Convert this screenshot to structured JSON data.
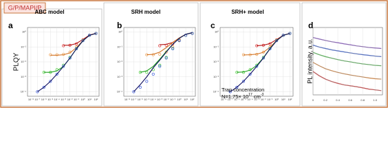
{
  "tag": "G/P/MAPI/P",
  "chart_data": [
    {
      "type": "scatter",
      "panel": "a",
      "title": "ABC model",
      "ylabel": "PLQY",
      "log_x": true,
      "log_y": true,
      "grid": true,
      "x": [
        1e-07,
        1e-06,
        1e-05,
        0.0001,
        0.001,
        0.01,
        0.1,
        1,
        10,
        100
      ],
      "xlim": [
        3e-09,
        300
      ],
      "ylim": [
        5e-05,
        2
      ],
      "xticks": [
        {
          "value": 1e-08,
          "label": "10⁻⁸"
        },
        {
          "value": 1e-07,
          "label": "10⁻⁷"
        },
        {
          "value": 1e-06,
          "label": "10⁻⁶"
        },
        {
          "value": 1e-05,
          "label": "10⁻⁵"
        },
        {
          "value": 0.0001,
          "label": "10⁻⁴"
        },
        {
          "value": 0.001,
          "label": "10⁻³"
        },
        {
          "value": 0.01,
          "label": "10⁻²"
        },
        {
          "value": 0.1,
          "label": "10⁻¹"
        },
        {
          "value": 1,
          "label": "10⁰"
        },
        {
          "value": 10,
          "label": "10¹"
        },
        {
          "value": 100,
          "label": "10²"
        }
      ],
      "yticks": [
        {
          "value": 0.0001,
          "label": "10⁻⁴"
        },
        {
          "value": 0.001,
          "label": "10⁻³"
        },
        {
          "value": 0.01,
          "label": "10⁻²"
        },
        {
          "value": 0.1,
          "label": "10⁻¹"
        },
        {
          "value": 1,
          "label": "10⁰"
        }
      ],
      "series": [
        {
          "color": "#e03030",
          "fit_color": "#b01010",
          "values": [
            null,
            null,
            null,
            null,
            0.12,
            0.13,
            0.16,
            0.3,
            0.6,
            0.8
          ],
          "fit": [
            null,
            null,
            null,
            null,
            0.13,
            0.13,
            0.17,
            0.32,
            0.62,
            0.82
          ]
        },
        {
          "color": "#f0a050",
          "fit_color": "#d07020",
          "values": [
            null,
            null,
            0.03,
            0.03,
            0.032,
            0.045,
            0.1,
            0.28,
            0.6,
            0.8
          ],
          "fit": [
            null,
            null,
            0.028,
            0.028,
            0.03,
            0.04,
            0.09,
            0.27,
            0.6,
            0.8
          ]
        },
        {
          "color": "#50d040",
          "fit_color": "#20a020",
          "values": [
            null,
            0.002,
            0.002,
            0.003,
            0.006,
            0.02,
            0.08,
            0.27,
            0.6,
            0.8
          ],
          "fit": [
            null,
            0.002,
            0.002,
            0.0025,
            0.005,
            0.018,
            0.075,
            0.26,
            0.6,
            0.8
          ]
        },
        {
          "color": "#4060e0",
          "fit_color": "#101060",
          "values": [
            0.0001,
            0.0002,
            0.0005,
            0.0015,
            0.005,
            0.018,
            0.075,
            0.26,
            0.6,
            0.8
          ],
          "fit": [
            0.0001,
            0.0002,
            0.0005,
            0.0015,
            0.005,
            0.018,
            0.075,
            0.26,
            0.6,
            0.8
          ]
        }
      ]
    },
    {
      "type": "scatter",
      "panel": "b",
      "title": "SRH model",
      "log_x": true,
      "log_y": true,
      "grid": true,
      "x": [
        1e-07,
        1e-06,
        1e-05,
        0.0001,
        0.001,
        0.01,
        0.1,
        1,
        10,
        100
      ],
      "xlim": [
        3e-09,
        300
      ],
      "ylim": [
        5e-05,
        2
      ],
      "xticks": [
        {
          "value": 1e-08,
          "label": "10⁻⁸"
        },
        {
          "value": 1e-07,
          "label": "10⁻⁷"
        },
        {
          "value": 1e-06,
          "label": "10⁻⁶"
        },
        {
          "value": 1e-05,
          "label": "10⁻⁵"
        },
        {
          "value": 0.0001,
          "label": "10⁻⁴"
        },
        {
          "value": 0.001,
          "label": "10⁻³"
        },
        {
          "value": 0.01,
          "label": "10⁻²"
        },
        {
          "value": 0.1,
          "label": "10⁻¹"
        },
        {
          "value": 1,
          "label": "10⁰"
        },
        {
          "value": 10,
          "label": "10¹"
        },
        {
          "value": 100,
          "label": "10²"
        }
      ],
      "yticks": [
        {
          "value": 0.0001,
          "label": "10⁻⁴"
        },
        {
          "value": 0.001,
          "label": "10⁻³"
        },
        {
          "value": 0.01,
          "label": "10⁻²"
        },
        {
          "value": 0.1,
          "label": "10⁻¹"
        },
        {
          "value": 1,
          "label": "10⁰"
        }
      ],
      "series": [
        {
          "color": "#e03030",
          "fit_color": "#b01010",
          "values": [
            null,
            null,
            null,
            null,
            0.12,
            0.13,
            0.16,
            0.3,
            0.6,
            0.8
          ],
          "fit": [
            null,
            null,
            null,
            null,
            0.14,
            0.15,
            0.2,
            0.4,
            0.7,
            0.9
          ]
        },
        {
          "color": "#f0a050",
          "fit_color": "#d07020",
          "values": [
            null,
            null,
            0.03,
            0.03,
            0.032,
            0.045,
            0.1,
            0.28,
            0.6,
            0.8
          ],
          "fit": [
            null,
            null,
            0.03,
            0.032,
            0.045,
            0.09,
            0.2,
            0.4,
            0.7,
            0.9
          ]
        },
        {
          "color": "#50d040",
          "fit_color": "#20a020",
          "values": [
            null,
            0.002,
            0.002,
            0.003,
            0.006,
            0.02,
            0.08,
            0.27,
            0.6,
            0.8
          ],
          "fit": [
            null,
            0.002,
            0.0025,
            0.005,
            0.015,
            0.05,
            0.15,
            0.38,
            0.7,
            0.9
          ]
        },
        {
          "color": "#4060e0",
          "fit_color": "#101060",
          "values": [
            0.0001,
            0.0002,
            0.0005,
            0.0015,
            0.005,
            0.018,
            0.075,
            0.26,
            0.6,
            0.8
          ],
          "fit": [
            0.0001,
            0.0003,
            0.001,
            0.004,
            0.013,
            0.045,
            0.15,
            0.38,
            0.7,
            0.9
          ]
        }
      ]
    },
    {
      "type": "scatter",
      "panel": "c",
      "title": "SRH+ model",
      "log_x": true,
      "log_y": true,
      "grid": true,
      "annotation": {
        "line1": "Trap concentration",
        "prefix": "N=1.75× 10",
        "exp1": "17",
        "unit": " cm",
        "exp2": "-3"
      },
      "x": [
        1e-07,
        1e-06,
        1e-05,
        0.0001,
        0.001,
        0.01,
        0.1,
        1,
        10,
        100
      ],
      "xlim": [
        3e-09,
        300
      ],
      "ylim": [
        5e-05,
        2
      ],
      "xticks": [
        {
          "value": 1e-08,
          "label": "10⁻⁸"
        },
        {
          "value": 1e-07,
          "label": "10⁻⁷"
        },
        {
          "value": 1e-06,
          "label": "10⁻⁶"
        },
        {
          "value": 1e-05,
          "label": "10⁻⁵"
        },
        {
          "value": 0.0001,
          "label": "10⁻⁴"
        },
        {
          "value": 0.001,
          "label": "10⁻³"
        },
        {
          "value": 0.01,
          "label": "10⁻²"
        },
        {
          "value": 0.1,
          "label": "10⁻¹"
        },
        {
          "value": 1,
          "label": "10⁰"
        },
        {
          "value": 10,
          "label": "10¹"
        },
        {
          "value": 100,
          "label": "10²"
        }
      ],
      "yticks": [
        {
          "value": 0.0001,
          "label": "10⁻⁴"
        },
        {
          "value": 0.001,
          "label": "10⁻³"
        },
        {
          "value": 0.01,
          "label": "10⁻²"
        },
        {
          "value": 0.1,
          "label": "10⁻¹"
        },
        {
          "value": 1,
          "label": "10⁰"
        }
      ],
      "series": [
        {
          "color": "#e03030",
          "fit_color": "#b01010",
          "values": [
            null,
            null,
            null,
            null,
            0.12,
            0.13,
            0.16,
            0.3,
            0.6,
            0.8
          ],
          "fit": [
            null,
            null,
            null,
            null,
            0.12,
            0.13,
            0.17,
            0.31,
            0.61,
            0.81
          ]
        },
        {
          "color": "#f0a050",
          "fit_color": "#d07020",
          "values": [
            null,
            null,
            0.03,
            0.03,
            0.032,
            0.045,
            0.1,
            0.28,
            0.6,
            0.8
          ],
          "fit": [
            null,
            null,
            0.029,
            0.03,
            0.033,
            0.044,
            0.095,
            0.27,
            0.6,
            0.8
          ]
        },
        {
          "color": "#50d040",
          "fit_color": "#20a020",
          "values": [
            null,
            0.002,
            0.002,
            0.003,
            0.006,
            0.02,
            0.08,
            0.27,
            0.6,
            0.8
          ],
          "fit": [
            null,
            0.002,
            0.0021,
            0.0028,
            0.0058,
            0.019,
            0.078,
            0.27,
            0.6,
            0.8
          ]
        },
        {
          "color": "#4060e0",
          "fit_color": "#101060",
          "values": [
            0.0001,
            0.0002,
            0.0005,
            0.0015,
            0.005,
            0.018,
            0.075,
            0.26,
            0.6,
            0.8
          ],
          "fit": [
            0.0001,
            0.0002,
            0.0005,
            0.0015,
            0.005,
            0.018,
            0.075,
            0.26,
            0.6,
            0.8
          ]
        }
      ]
    },
    {
      "type": "line",
      "panel": "d",
      "ylabel": "PL intensity,  a.u.",
      "log_y": true,
      "grid": true,
      "x": [
        0,
        0.1,
        0.2,
        0.3,
        0.4,
        0.5,
        0.6,
        0.7,
        0.8,
        0.9,
        1.0,
        1.1
      ],
      "xlim": [
        0,
        1.12
      ],
      "ylim": [
        0.0003,
        1
      ],
      "xticks": [
        0,
        0.2,
        0.4,
        0.6,
        0.8,
        {
          "value": 1,
          "label": "1.0"
        }
      ],
      "series": [
        {
          "color": "#8040d0",
          "fit_color": "#909090",
          "values": [
            0.3,
            0.25,
            0.21,
            0.18,
            0.16,
            0.14,
            0.125,
            0.11,
            0.1,
            0.09,
            0.085,
            0.08
          ],
          "fit": [
            0.3,
            0.25,
            0.21,
            0.18,
            0.16,
            0.14,
            0.125,
            0.11,
            0.1,
            0.09,
            0.085,
            0.08
          ]
        },
        {
          "color": "#2050e0",
          "fit_color": "#909090",
          "values": [
            0.12,
            0.095,
            0.08,
            0.068,
            0.06,
            0.053,
            0.047,
            0.042,
            0.038,
            0.035,
            0.032,
            0.03
          ],
          "fit": [
            0.12,
            0.095,
            0.08,
            0.068,
            0.06,
            0.053,
            0.047,
            0.042,
            0.038,
            0.035,
            0.032,
            0.03
          ]
        },
        {
          "color": "#30c030",
          "fit_color": "#909090",
          "values": [
            0.05,
            0.038,
            0.03,
            0.025,
            0.021,
            0.018,
            0.016,
            0.014,
            0.0125,
            0.0115,
            0.0105,
            0.01
          ],
          "fit": [
            0.05,
            0.038,
            0.03,
            0.025,
            0.021,
            0.018,
            0.016,
            0.014,
            0.0125,
            0.0115,
            0.0105,
            0.01
          ]
        },
        {
          "color": "#f08020",
          "fit_color": "#909090",
          "values": [
            0.015,
            0.01,
            0.007,
            0.0055,
            0.0045,
            0.0038,
            0.0033,
            0.0029,
            0.0026,
            0.0023,
            0.0021,
            0.002
          ],
          "fit": [
            0.015,
            0.01,
            0.007,
            0.0055,
            0.0045,
            0.0038,
            0.0033,
            0.0029,
            0.0026,
            0.0023,
            0.0021,
            0.002
          ]
        },
        {
          "color": "#e02020",
          "fit_color": "#909090",
          "values": [
            0.005,
            0.003,
            0.002,
            0.0015,
            0.0012,
            0.001,
            0.0009,
            0.0008,
            0.0007,
            0.0006,
            0.00055,
            0.0005
          ],
          "fit": [
            0.005,
            0.003,
            0.002,
            0.0015,
            0.0012,
            0.001,
            0.0009,
            0.0008,
            0.0007,
            0.0006,
            0.00055,
            0.0005
          ]
        }
      ]
    }
  ]
}
